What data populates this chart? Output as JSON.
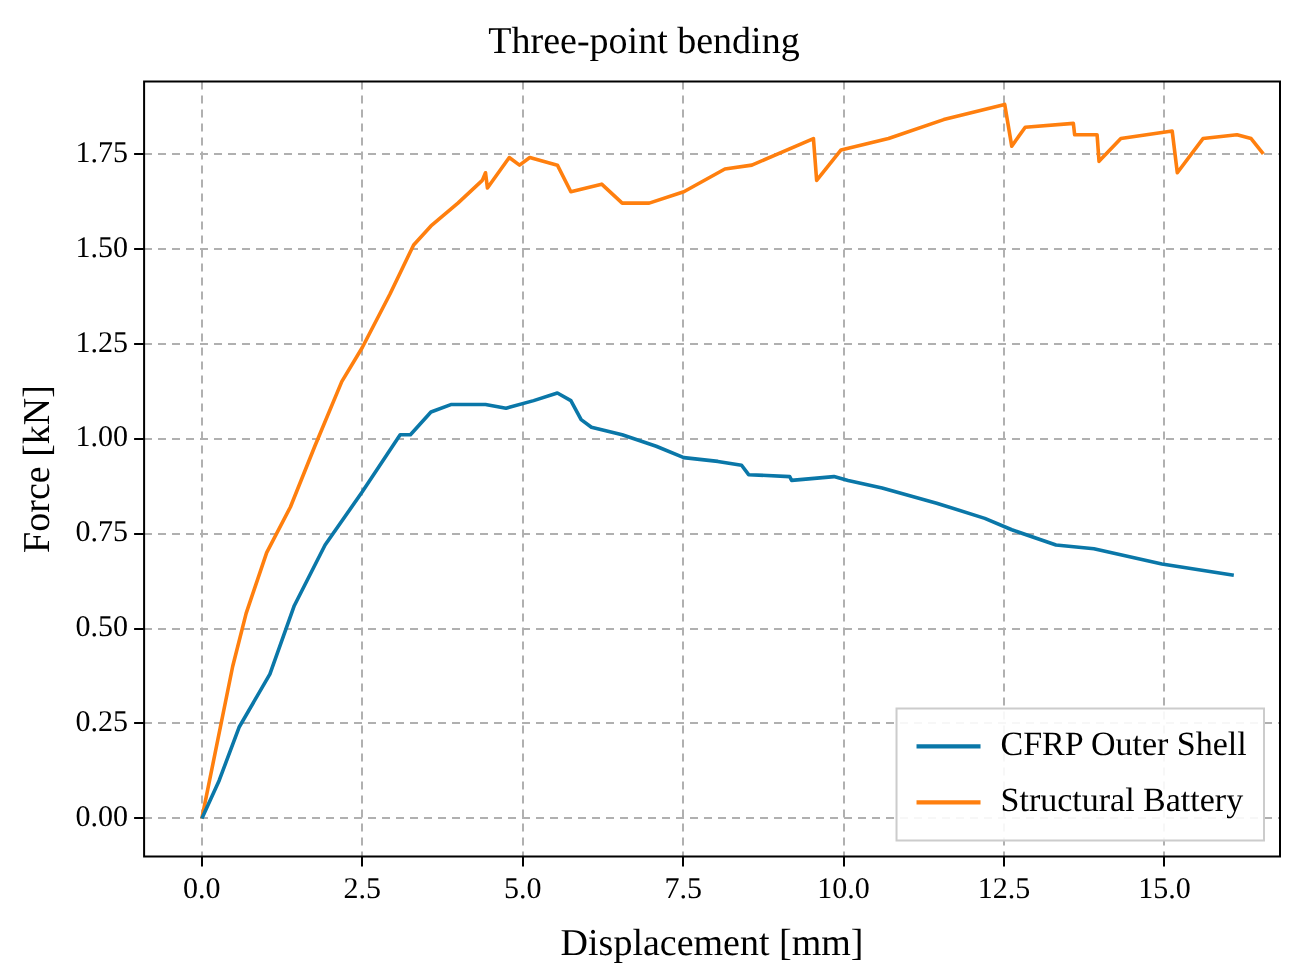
{
  "chart_data": {
    "type": "line",
    "title": "Three-point bending",
    "xlabel": "Displacement [mm]",
    "ylabel": "Force [kN]",
    "xlim": [
      -0.9,
      16.8
    ],
    "ylim": [
      -0.1,
      1.94
    ],
    "xticks": [
      {
        "value": 0,
        "label": "0.0"
      },
      {
        "value": 2.5,
        "label": "2.5"
      },
      {
        "value": 5,
        "label": "5.0"
      },
      {
        "value": 7.5,
        "label": "7.5"
      },
      {
        "value": 10,
        "label": "10.0"
      },
      {
        "value": 12.5,
        "label": "12.5"
      },
      {
        "value": 15,
        "label": "15.0"
      }
    ],
    "yticks": [
      {
        "value": 0,
        "label": "0.00"
      },
      {
        "value": 0.25,
        "label": "0.25"
      },
      {
        "value": 0.5,
        "label": "0.50"
      },
      {
        "value": 0.75,
        "label": "0.75"
      },
      {
        "value": 1,
        "label": "1.00"
      },
      {
        "value": 1.25,
        "label": "1.25"
      },
      {
        "value": 1.5,
        "label": "1.50"
      },
      {
        "value": 1.75,
        "label": "1.75"
      }
    ],
    "grid": true,
    "legend": "bottom right",
    "marker": "none",
    "line_style": "solid",
    "series": [
      {
        "name": "CFRP Outer Shell",
        "color": "#0a77a8",
        "x": [
          0,
          0.27,
          0.58,
          1.06,
          1.44,
          1.92,
          2.5,
          3.09,
          3.25,
          3.57,
          3.89,
          4.42,
          4.74,
          5.17,
          5.54,
          5.75,
          5.91,
          6.07,
          6.55,
          7.08,
          7.51,
          8.04,
          8.41,
          8.52,
          9.16,
          9.19,
          9.85,
          10.07,
          10.6,
          11.45,
          12.2,
          12.62,
          13.31,
          13.9,
          14.96,
          16.08
        ],
        "values": [
          0,
          0.1,
          0.24,
          0.38,
          0.56,
          0.72,
          0.86,
          1.01,
          1.01,
          1.07,
          1.09,
          1.09,
          1.08,
          1.1,
          1.12,
          1.1,
          1.05,
          1.03,
          1.01,
          0.98,
          0.95,
          0.94,
          0.93,
          0.905,
          0.9,
          0.89,
          0.9,
          0.89,
          0.87,
          0.83,
          0.79,
          0.76,
          0.72,
          0.71,
          0.67,
          0.64
        ]
      },
      {
        "name": "Structural Battery",
        "color": "#ff7f0e",
        "x": [
          0,
          0.48,
          0.69,
          1.01,
          1.38,
          1.76,
          2.18,
          2.5,
          2.93,
          3.3,
          3.57,
          3.99,
          4.37,
          4.42,
          4.45,
          4.79,
          4.95,
          5.11,
          5.54,
          5.75,
          6.23,
          6.55,
          6.97,
          7.51,
          8.15,
          8.57,
          9.53,
          9.58,
          9.96,
          10.7,
          11.56,
          12.51,
          12.62,
          12.83,
          13.58,
          13.6,
          13.95,
          13.98,
          14.32,
          15.12,
          15.2,
          15.6,
          16.13,
          16.35,
          16.54
        ],
        "values": [
          0,
          0.4,
          0.54,
          0.7,
          0.82,
          0.98,
          1.15,
          1.24,
          1.38,
          1.51,
          1.56,
          1.62,
          1.68,
          1.7,
          1.66,
          1.74,
          1.72,
          1.74,
          1.72,
          1.65,
          1.67,
          1.62,
          1.62,
          1.65,
          1.71,
          1.72,
          1.79,
          1.68,
          1.76,
          1.79,
          1.84,
          1.88,
          1.77,
          1.82,
          1.83,
          1.8,
          1.8,
          1.73,
          1.79,
          1.81,
          1.7,
          1.79,
          1.8,
          1.79,
          1.75
        ]
      }
    ]
  }
}
